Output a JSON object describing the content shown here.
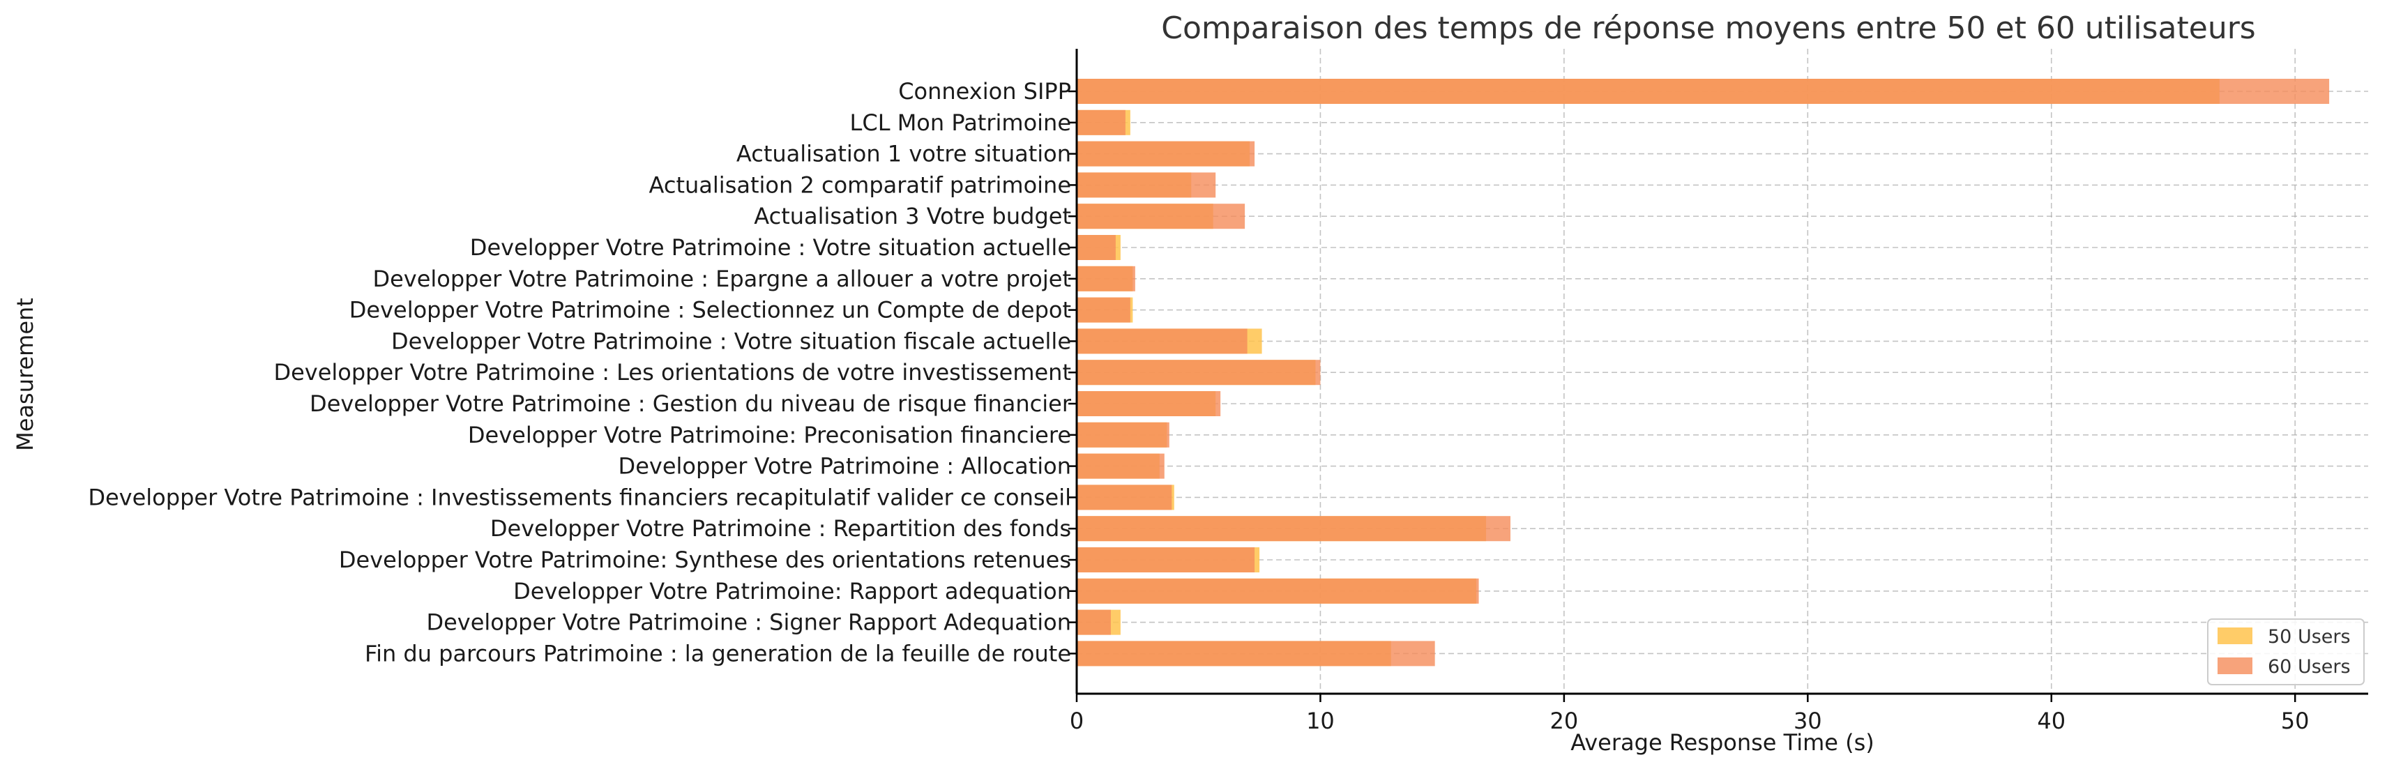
{
  "chart_data": {
    "type": "bar",
    "orientation": "horizontal",
    "title": "Comparaison des temps de réponse moyens entre 50 et 60 utilisateurs",
    "xlabel": "Average Response Time (s)",
    "ylabel": "Measurement",
    "xlim": [
      0,
      53
    ],
    "xticks": [
      0,
      10,
      20,
      30,
      40,
      50
    ],
    "grid": true,
    "legend_position": "bottom-right",
    "categories": [
      "Connexion SIPP",
      "LCL Mon Patrimoine",
      "Actualisation 1 votre situation",
      "Actualisation 2 comparatif patrimoine",
      "Actualisation 3 Votre budget",
      "Developper Votre Patrimoine : Votre situation actuelle",
      "Developper Votre Patrimoine : Epargne a allouer a votre projet",
      "Developper Votre Patrimoine : Selectionnez un Compte de depot",
      "Developper Votre Patrimoine : Votre situation fiscale actuelle",
      "Developper Votre Patrimoine : Les orientations de votre investissement",
      "Developper Votre Patrimoine : Gestion du niveau de risque financier",
      "Developper Votre Patrimoine: Preconisation financiere",
      "Developper Votre Patrimoine : Allocation",
      "Developper Votre Patrimoine : Investissements financiers recapitulatif valider ce conseil",
      "Developper Votre Patrimoine : Repartition des fonds",
      "Developper Votre Patrimoine: Synthese des orientations retenues",
      "Developper Votre Patrimoine: Rapport adequation",
      "Developper Votre Patrimoine : Signer Rapport Adequation",
      "Fin du parcours Patrimoine : la generation de la feuille de route"
    ],
    "series": [
      {
        "name": "50 Users",
        "color": "#ffc34d",
        "values": [
          46.9,
          2.2,
          7.1,
          4.7,
          5.6,
          1.8,
          2.3,
          2.3,
          7.6,
          9.8,
          5.7,
          3.7,
          3.4,
          4.0,
          16.8,
          7.5,
          16.4,
          1.8,
          12.9
        ]
      },
      {
        "name": "60 Users",
        "color": "#f58c5a",
        "values": [
          51.4,
          2.0,
          7.3,
          5.7,
          6.9,
          1.6,
          2.4,
          2.2,
          7.0,
          10.0,
          5.9,
          3.8,
          3.6,
          3.9,
          17.8,
          7.3,
          16.5,
          1.4,
          14.7
        ]
      }
    ]
  }
}
